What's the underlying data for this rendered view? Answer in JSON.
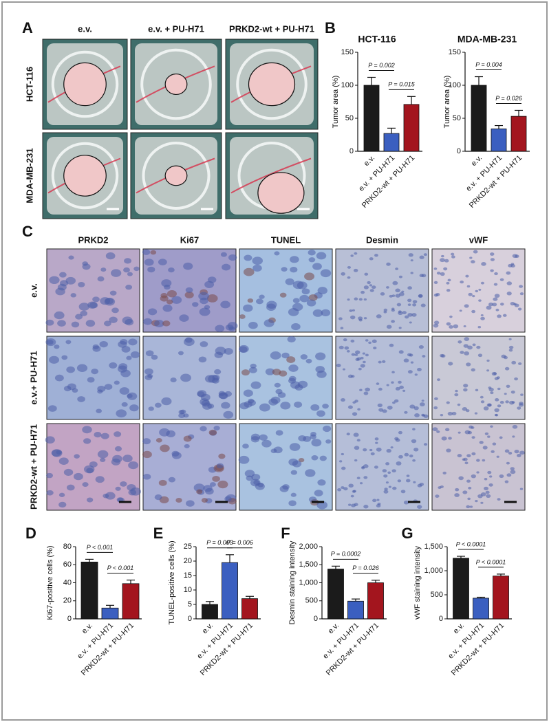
{
  "panel_labels": [
    "A",
    "B",
    "C",
    "D",
    "E",
    "F",
    "G"
  ],
  "panel_a": {
    "columns": [
      "e.v.",
      "e.v. + PU-H71",
      "PRKD2-wt + PU-H71"
    ],
    "rows": [
      "HCT-116",
      "MDA-MB-231"
    ]
  },
  "panel_c": {
    "columns": [
      "PRKD2",
      "Ki67",
      "TUNEL",
      "Desmin",
      "vWF"
    ],
    "rows": [
      "e.v.",
      "e.v.+ PU-H71",
      "PRKD2-wt + PU-H71"
    ]
  },
  "chart_data": [
    {
      "type": "bar",
      "title": "HCT-116",
      "y_label": "Tumor area (%)",
      "categories": [
        "e.v.",
        "e.v. + PU-H71",
        "PRKD2-wt + PU-H71"
      ],
      "values": [
        100,
        27,
        71
      ],
      "errors": [
        12,
        8,
        12
      ],
      "colors": [
        "#1b1b1b",
        "#3b5fc0",
        "#a3151e"
      ],
      "ylim": [
        0,
        150
      ],
      "yticks": [
        0,
        50,
        100,
        150
      ],
      "annotations": [
        "P = 0.002",
        "P = 0.015"
      ]
    },
    {
      "type": "bar",
      "title": "MDA-MB-231",
      "y_label": "Tumor area (%)",
      "categories": [
        "e.v.",
        "e.v. + PU-H71",
        "PRKD2-wt + PU-H71"
      ],
      "values": [
        100,
        34,
        53
      ],
      "errors": [
        13,
        5,
        9
      ],
      "colors": [
        "#1b1b1b",
        "#3b5fc0",
        "#a3151e"
      ],
      "ylim": [
        0,
        150
      ],
      "yticks": [
        0,
        50,
        100,
        150
      ],
      "annotations": [
        "P = 0.004",
        "P = 0.026"
      ]
    },
    {
      "type": "bar",
      "y_label": "Ki67-positive cells (%)",
      "categories": [
        "e.v.",
        "e.v. + PU-H71",
        "PRKD2-wt + PU-H71"
      ],
      "values": [
        63,
        12,
        39
      ],
      "errors": [
        3,
        3,
        4
      ],
      "colors": [
        "#1b1b1b",
        "#3b5fc0",
        "#a3151e"
      ],
      "ylim": [
        0,
        80
      ],
      "yticks": [
        0,
        20,
        40,
        60,
        80
      ],
      "annotations": [
        "P < 0.001",
        "P < 0.001"
      ]
    },
    {
      "type": "bar",
      "y_label": "TUNEL-positive cells (%)",
      "categories": [
        "e.v.",
        "e.v. + PU-H71",
        "PRKD2-wt + PU-H71"
      ],
      "values": [
        5,
        19.5,
        7
      ],
      "errors": [
        1,
        2.7,
        0.8
      ],
      "colors": [
        "#1b1b1b",
        "#3b5fc0",
        "#a3151e"
      ],
      "ylim": [
        0,
        25
      ],
      "yticks": [
        0,
        5,
        10,
        15,
        20,
        25
      ],
      "annotations": [
        "P = 0.003",
        "P = 0.006"
      ]
    },
    {
      "type": "bar",
      "y_label": "Desmin staining intensity",
      "categories": [
        "e.v.",
        "e.v. + PU-H71",
        "PRKD2-wt + PU-H71"
      ],
      "values": [
        1380,
        490,
        1000
      ],
      "errors": [
        80,
        60,
        70
      ],
      "colors": [
        "#1b1b1b",
        "#3b5fc0",
        "#a3151e"
      ],
      "ylim": [
        0,
        2000
      ],
      "yticks": [
        0,
        500,
        {
          "value": 1000,
          "label": "1,000"
        },
        {
          "value": 1500,
          "label": "1,500"
        },
        {
          "value": 2000,
          "label": "2,000"
        }
      ],
      "annotations": [
        "P = 0.0002",
        "P = 0.026"
      ]
    },
    {
      "type": "bar",
      "y_label": "vWF staining intensity",
      "categories": [
        "e.v.",
        "e.v. + PU-H71",
        "PRKD2-wt + PU-H71"
      ],
      "values": [
        1260,
        430,
        890
      ],
      "errors": [
        40,
        20,
        40
      ],
      "colors": [
        "#1b1b1b",
        "#3b5fc0",
        "#a3151e"
      ],
      "ylim": [
        0,
        1500
      ],
      "yticks": [
        0,
        500,
        {
          "value": 1000,
          "label": "1,000"
        },
        {
          "value": 1500,
          "label": "1,500"
        }
      ],
      "annotations": [
        "P < 0.0001",
        "P < 0.0001"
      ]
    }
  ]
}
